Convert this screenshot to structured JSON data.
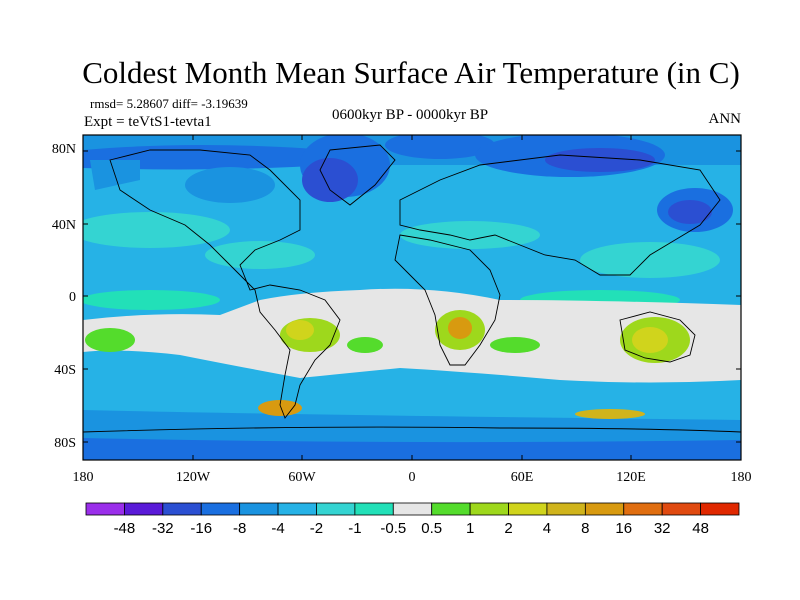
{
  "header": {
    "title": "Coldest Month Mean Surface Air Temperature (in C)",
    "stats": "rmsd= 5.28607 diff= -3.19639",
    "experiment": "Expt = teVtS1-tevta1",
    "period": "0600kyr BP - 0000kyr BP",
    "season": "ANN"
  },
  "axes": {
    "lat_labels": [
      "80N",
      "40N",
      "0",
      "40S",
      "80S"
    ],
    "lon_labels": [
      "180",
      "120W",
      "60W",
      "0",
      "60E",
      "120E",
      "180"
    ]
  },
  "colorbar": {
    "colors": [
      "#9a2eea",
      "#5a1ad8",
      "#2b4fd2",
      "#1a6fe0",
      "#1a93e0",
      "#26b2e6",
      "#34d4d2",
      "#22e0b8",
      "#e6e6e6",
      "#54dc2c",
      "#9ed81c",
      "#d0d41c",
      "#d0b41c",
      "#d89a10",
      "#e06e10",
      "#e04a10",
      "#e02800"
    ],
    "labels": [
      "-48",
      "-32",
      "-16",
      "-8",
      "-4",
      "-2",
      "-1",
      "-0.5",
      "0.5",
      "1",
      "2",
      "4",
      "8",
      "16",
      "32",
      "48"
    ]
  }
}
